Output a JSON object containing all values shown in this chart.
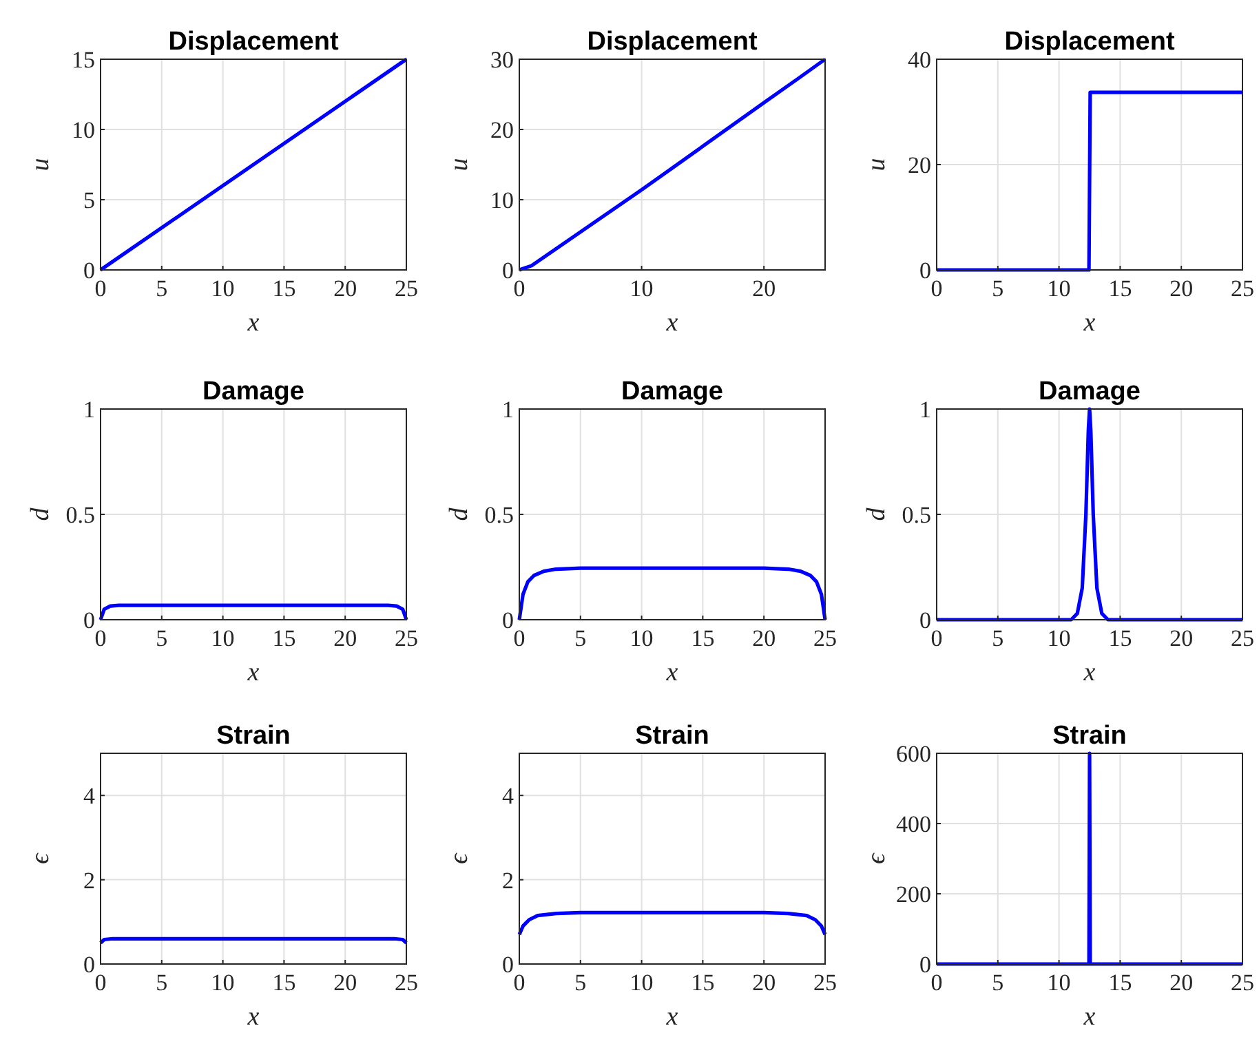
{
  "chart_data": [
    {
      "type": "line",
      "title": "Displacement",
      "xlabel": "x",
      "ylabel": "u",
      "x": [
        0,
        25
      ],
      "xlim": [
        0,
        25
      ],
      "xticks": [
        0,
        5,
        10,
        15,
        20,
        25
      ],
      "ylim": [
        0,
        15
      ],
      "yticks": [
        0,
        5,
        10,
        15
      ],
      "grid": true,
      "series": [
        {
          "color": "#0000ff",
          "values": [
            0,
            15
          ]
        }
      ]
    },
    {
      "type": "line",
      "title": "Displacement",
      "xlabel": "x",
      "ylabel": "u",
      "x": [
        0,
        1,
        2,
        5,
        10,
        15,
        20,
        23,
        25
      ],
      "xlim": [
        0,
        25
      ],
      "xticks": [
        0,
        10,
        20
      ],
      "ylim": [
        0,
        30
      ],
      "yticks": [
        0,
        10,
        20,
        30
      ],
      "grid": true,
      "series": [
        {
          "color": "#0000ff",
          "values": [
            0,
            0.6,
            1.8,
            5.4,
            11.4,
            17.6,
            23.8,
            27.5,
            30
          ]
        }
      ]
    },
    {
      "type": "line",
      "title": "Displacement",
      "xlabel": "x",
      "ylabel": "u",
      "x": [
        0,
        12.45,
        12.55,
        25
      ],
      "xlim": [
        0,
        25
      ],
      "xticks": [
        0,
        5,
        10,
        15,
        20,
        25
      ],
      "ylim": [
        0,
        40
      ],
      "yticks": [
        0,
        20,
        40
      ],
      "grid": true,
      "series": [
        {
          "color": "#0000ff",
          "values": [
            0,
            0,
            33.7,
            33.7
          ]
        }
      ]
    },
    {
      "type": "line",
      "title": "Damage",
      "xlabel": "x",
      "ylabel": "d",
      "x": [
        0,
        0.3,
        0.8,
        1.5,
        12.5,
        23.5,
        24.2,
        24.7,
        25
      ],
      "xlim": [
        0,
        25
      ],
      "xticks": [
        0,
        5,
        10,
        15,
        20,
        25
      ],
      "ylim": [
        0,
        1
      ],
      "yticks": [
        0,
        0.5,
        1
      ],
      "grid": true,
      "series": [
        {
          "color": "#0000ff",
          "values": [
            0,
            0.05,
            0.065,
            0.068,
            0.068,
            0.068,
            0.065,
            0.05,
            0
          ]
        }
      ]
    },
    {
      "type": "line",
      "title": "Damage",
      "xlabel": "x",
      "ylabel": "d",
      "x": [
        0,
        0.3,
        0.7,
        1.2,
        2,
        3,
        5,
        12.5,
        20,
        22,
        23,
        23.8,
        24.3,
        24.7,
        25
      ],
      "xlim": [
        0,
        25
      ],
      "xticks": [
        0,
        5,
        10,
        15,
        20,
        25
      ],
      "ylim": [
        0,
        1
      ],
      "yticks": [
        0,
        0.5,
        1
      ],
      "grid": true,
      "series": [
        {
          "color": "#0000ff",
          "values": [
            0,
            0.12,
            0.18,
            0.21,
            0.23,
            0.24,
            0.245,
            0.245,
            0.245,
            0.24,
            0.23,
            0.21,
            0.18,
            0.12,
            0
          ]
        }
      ]
    },
    {
      "type": "line",
      "title": "Damage",
      "xlabel": "x",
      "ylabel": "d",
      "x": [
        0,
        11,
        11.5,
        11.9,
        12.2,
        12.4,
        12.5,
        12.6,
        12.8,
        13.1,
        13.5,
        14,
        25
      ],
      "xlim": [
        0,
        25
      ],
      "xticks": [
        0,
        5,
        10,
        15,
        20,
        25
      ],
      "ylim": [
        0,
        1
      ],
      "yticks": [
        0,
        0.5,
        1
      ],
      "grid": true,
      "series": [
        {
          "color": "#0000ff",
          "values": [
            0,
            0,
            0.03,
            0.15,
            0.5,
            0.9,
            1,
            0.9,
            0.5,
            0.15,
            0.03,
            0,
            0
          ]
        }
      ]
    },
    {
      "type": "line",
      "title": "Strain",
      "xlabel": "x",
      "ylabel": "ϵ",
      "x": [
        0,
        0.3,
        1,
        24,
        24.7,
        25
      ],
      "xlim": [
        0,
        25
      ],
      "xticks": [
        0,
        5,
        10,
        15,
        20,
        25
      ],
      "ylim": [
        0,
        5
      ],
      "yticks": [
        0,
        2,
        4
      ],
      "grid": true,
      "series": [
        {
          "color": "#0000ff",
          "values": [
            0.5,
            0.58,
            0.6,
            0.6,
            0.58,
            0.5
          ]
        }
      ]
    },
    {
      "type": "line",
      "title": "Strain",
      "xlabel": "x",
      "ylabel": "ϵ",
      "x": [
        0,
        0.3,
        0.8,
        1.5,
        3,
        5,
        20,
        22,
        23.5,
        24.2,
        24.7,
        25
      ],
      "xlim": [
        0,
        25
      ],
      "xticks": [
        0,
        5,
        10,
        15,
        20,
        25
      ],
      "ylim": [
        0,
        5
      ],
      "yticks": [
        0,
        2,
        4
      ],
      "grid": true,
      "series": [
        {
          "color": "#0000ff",
          "values": [
            0.7,
            0.9,
            1.05,
            1.15,
            1.2,
            1.22,
            1.22,
            1.2,
            1.15,
            1.05,
            0.9,
            0.7
          ]
        }
      ]
    },
    {
      "type": "line",
      "title": "Strain",
      "xlabel": "x",
      "ylabel": "ϵ",
      "x": [
        0,
        12.45,
        12.5,
        12.55,
        25
      ],
      "xlim": [
        0,
        25
      ],
      "xticks": [
        0,
        5,
        10,
        15,
        20,
        25
      ],
      "ylim": [
        0,
        600
      ],
      "yticks": [
        0,
        200,
        400,
        600
      ],
      "grid": true,
      "series": [
        {
          "color": "#0000ff",
          "values": [
            0,
            0,
            600,
            0,
            0
          ]
        }
      ]
    }
  ]
}
